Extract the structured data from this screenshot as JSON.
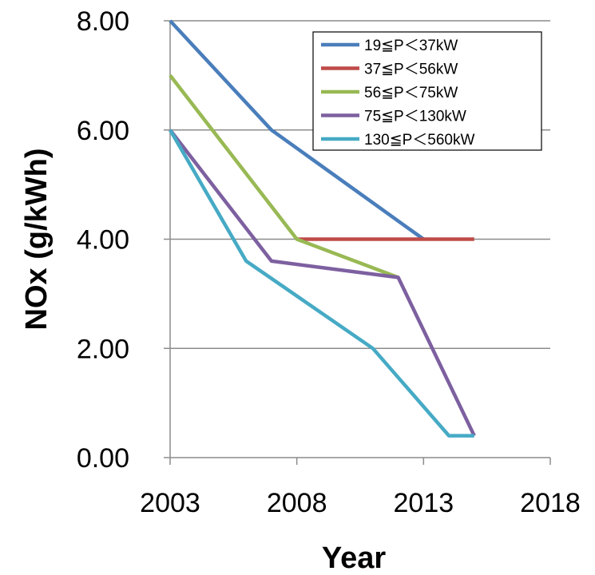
{
  "chart_data": {
    "type": "line",
    "xlabel": "Year",
    "ylabel": "NOx (g/kWh)",
    "xlim": [
      2003,
      2018
    ],
    "ylim": [
      0,
      8
    ],
    "x_ticks": [
      "2003",
      "2008",
      "2013",
      "2018"
    ],
    "y_ticks": [
      "0.00",
      "2.00",
      "4.00",
      "6.00",
      "8.00"
    ],
    "grid": "horizontal",
    "legend_position": "top-right",
    "series": [
      {
        "name": "19≦P＜37kW",
        "color": "#4a7ebb",
        "points": [
          [
            2003,
            8.0
          ],
          [
            2007,
            6.0
          ],
          [
            2013,
            4.0
          ]
        ]
      },
      {
        "name": "37≦P＜56kW",
        "color": "#be4b48",
        "points": [
          [
            2008,
            4.0
          ],
          [
            2015,
            4.0
          ]
        ]
      },
      {
        "name": "56≦P＜75kW",
        "color": "#98b954",
        "points": [
          [
            2003,
            7.0
          ],
          [
            2008,
            4.0
          ],
          [
            2012,
            3.3
          ]
        ]
      },
      {
        "name": "75≦P＜130kW",
        "color": "#7d60a0",
        "points": [
          [
            2003,
            6.0
          ],
          [
            2007,
            3.6
          ],
          [
            2012,
            3.3
          ],
          [
            2015,
            0.4
          ]
        ]
      },
      {
        "name": "130≦P＜560kW",
        "color": "#46aac5",
        "points": [
          [
            2003,
            6.0
          ],
          [
            2006,
            3.6
          ],
          [
            2011,
            2.0
          ],
          [
            2014,
            0.4
          ],
          [
            2015,
            0.4
          ]
        ]
      }
    ]
  }
}
